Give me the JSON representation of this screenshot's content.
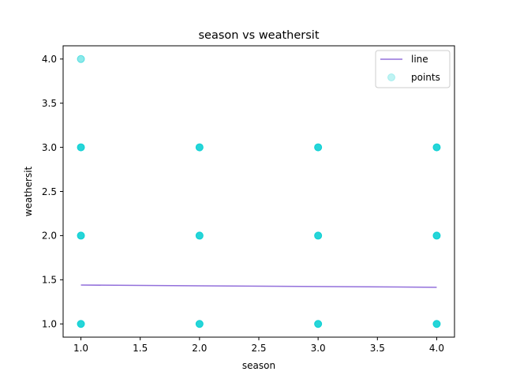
{
  "chart_data": {
    "type": "scatter",
    "title": "season vs weathersit",
    "xlabel": "season",
    "ylabel": "weathersit",
    "xlim": [
      0.85,
      4.15
    ],
    "ylim": [
      0.85,
      4.15
    ],
    "xticks": [
      "1.0",
      "1.5",
      "2.0",
      "2.5",
      "3.0",
      "3.5",
      "4.0"
    ],
    "yticks": [
      "1.0",
      "1.5",
      "2.0",
      "2.5",
      "3.0",
      "3.5",
      "4.0"
    ],
    "series": [
      {
        "name": "line",
        "kind": "line",
        "color": "#9370DB",
        "x": [
          1,
          4
        ],
        "y": [
          1.44,
          1.415
        ]
      },
      {
        "name": "points",
        "kind": "scatter",
        "color": "#00CED1",
        "x": [
          1,
          1,
          1,
          1,
          2,
          2,
          2,
          3,
          3,
          3,
          4,
          4,
          4
        ],
        "y": [
          1,
          2,
          3,
          4,
          1,
          2,
          3,
          1,
          2,
          3,
          1,
          2,
          3
        ]
      }
    ],
    "legend_position": "top-right",
    "grid": false
  }
}
